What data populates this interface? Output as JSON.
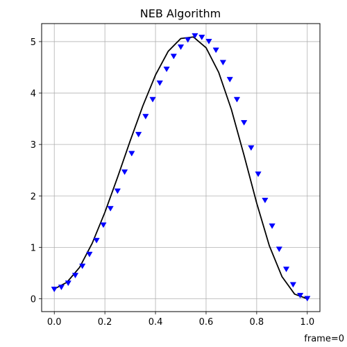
{
  "chart_data": {
    "type": "line",
    "title": "NEB Algorithm",
    "xlabel": "",
    "ylabel": "",
    "xlim": [
      -0.05,
      1.05
    ],
    "ylim": [
      -0.25,
      5.35
    ],
    "xticks": [
      0.0,
      0.2,
      0.4,
      0.6,
      0.8,
      1.0
    ],
    "xtick_labels": [
      "0.0",
      "0.2",
      "0.4",
      "0.6",
      "0.8",
      "1.0"
    ],
    "yticks": [
      0,
      1,
      2,
      3,
      4,
      5
    ],
    "ytick_labels": [
      "0",
      "1",
      "2",
      "3",
      "4",
      "5"
    ],
    "grid": true,
    "series": [
      {
        "kind": "line",
        "color": "#000000",
        "x": [
          0.0,
          0.05,
          0.1,
          0.15,
          0.2,
          0.25,
          0.3,
          0.35,
          0.4,
          0.45,
          0.5,
          0.55,
          0.6,
          0.65,
          0.7,
          0.75,
          0.8,
          0.85,
          0.9,
          0.95,
          1.0
        ],
        "y": [
          0.19,
          0.32,
          0.61,
          1.08,
          1.68,
          2.36,
          3.07,
          3.75,
          4.35,
          4.81,
          5.06,
          5.09,
          4.88,
          4.4,
          3.68,
          2.79,
          1.86,
          1.03,
          0.43,
          0.09,
          0.0
        ]
      },
      {
        "kind": "markers",
        "marker": "triangle-down",
        "color": "#0000ff",
        "x": [
          0.0,
          0.028,
          0.055,
          0.083,
          0.111,
          0.139,
          0.167,
          0.194,
          0.222,
          0.25,
          0.278,
          0.306,
          0.333,
          0.361,
          0.389,
          0.417,
          0.444,
          0.472,
          0.5,
          0.528,
          0.556,
          0.583,
          0.611,
          0.639,
          0.667,
          0.694,
          0.722,
          0.75,
          0.778,
          0.806,
          0.833,
          0.861,
          0.889,
          0.917,
          0.944,
          0.972,
          1.0
        ],
        "y": [
          0.19,
          0.23,
          0.31,
          0.46,
          0.64,
          0.87,
          1.14,
          1.44,
          1.76,
          2.1,
          2.47,
          2.83,
          3.2,
          3.55,
          3.88,
          4.2,
          4.47,
          4.72,
          4.9,
          5.04,
          5.12,
          5.09,
          5.01,
          4.84,
          4.6,
          4.27,
          3.88,
          3.43,
          2.94,
          2.43,
          1.92,
          1.42,
          0.97,
          0.58,
          0.28,
          0.07,
          0.01
        ]
      }
    ]
  },
  "annotation": "frame=0"
}
